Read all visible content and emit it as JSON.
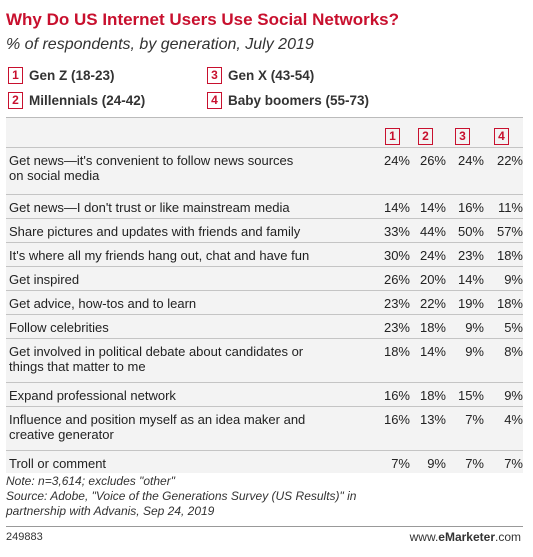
{
  "title": "Why Do US Internet Users Use Social Networks?",
  "subtitle": "% of respondents, by generation, July 2019",
  "legend": [
    {
      "num": "1",
      "label": "Gen Z (18-23)"
    },
    {
      "num": "2",
      "label": "Millennials (24-42)"
    },
    {
      "num": "3",
      "label": "Gen X (43-54)"
    },
    {
      "num": "4",
      "label": "Baby boomers (55-73)"
    }
  ],
  "column_numbers": [
    "1",
    "2",
    "3",
    "4"
  ],
  "chart_data": {
    "type": "table",
    "title": "Why Do US Internet Users Use Social Networks?",
    "subtitle": "% of respondents, by generation, July 2019",
    "series": [
      {
        "name": "Gen Z (18-23)",
        "values": [
          24,
          14,
          33,
          30,
          26,
          23,
          23,
          18,
          16,
          16,
          7
        ]
      },
      {
        "name": "Millennials (24-42)",
        "values": [
          26,
          14,
          44,
          24,
          20,
          22,
          18,
          14,
          18,
          13,
          9
        ]
      },
      {
        "name": "Gen X (43-54)",
        "values": [
          24,
          16,
          50,
          23,
          14,
          19,
          9,
          9,
          15,
          7,
          7
        ]
      },
      {
        "name": "Baby boomers (55-73)",
        "values": [
          22,
          11,
          57,
          18,
          9,
          18,
          5,
          8,
          9,
          4,
          7
        ]
      }
    ],
    "categories": [
      "Get news—it's convenient to follow news sources on social media",
      "Get news—I don't trust or like mainstream media",
      "Share pictures and updates with friends and family",
      "It's where all my friends hang out, chat and have fun",
      "Get inspired",
      "Get advice, how-tos and to learn",
      "Follow celebrities",
      "Get involved in political debate about candidates or things that matter to me",
      "Expand professional network",
      "Influence and position myself as an idea maker and creative generator",
      "Troll or comment"
    ]
  },
  "rows": [
    {
      "label": [
        "Get news—it's convenient to follow news sources",
        "on social media"
      ],
      "values": [
        "24%",
        "26%",
        "24%",
        "22%"
      ]
    },
    {
      "label": [
        "Get news—I don't trust or like mainstream media"
      ],
      "values": [
        "14%",
        "14%",
        "16%",
        "11%"
      ]
    },
    {
      "label": [
        "Share pictures and updates with friends and family"
      ],
      "values": [
        "33%",
        "44%",
        "50%",
        "57%"
      ]
    },
    {
      "label": [
        "It's where all my friends hang out, chat and have fun"
      ],
      "values": [
        "30%",
        "24%",
        "23%",
        "18%"
      ]
    },
    {
      "label": [
        "Get inspired"
      ],
      "values": [
        "26%",
        "20%",
        "14%",
        "9%"
      ]
    },
    {
      "label": [
        "Get advice, how-tos and to learn"
      ],
      "values": [
        "23%",
        "22%",
        "19%",
        "18%"
      ]
    },
    {
      "label": [
        "Follow celebrities"
      ],
      "values": [
        "23%",
        "18%",
        "9%",
        "5%"
      ]
    },
    {
      "label": [
        "Get involved in political debate about candidates or",
        "things that matter to me"
      ],
      "values": [
        "18%",
        "14%",
        "9%",
        "8%"
      ]
    },
    {
      "label": [
        "Expand professional network"
      ],
      "values": [
        "16%",
        "18%",
        "15%",
        "9%"
      ]
    },
    {
      "label": [
        "Influence and position myself as an idea maker and",
        "creative generator"
      ],
      "values": [
        "16%",
        "13%",
        "7%",
        "4%"
      ]
    },
    {
      "label": [
        "Troll or comment"
      ],
      "values": [
        "7%",
        "9%",
        "7%",
        "7%"
      ]
    }
  ],
  "note_lines": [
    "Note: n=3,614; excludes \"other\"",
    "Source: Adobe, \"Voice of the Generations Survey (US Results)\" in",
    "partnership with Advanis, Sep 24, 2019"
  ],
  "footer": {
    "id": "249883",
    "site_prefix": "www.",
    "site_brand": "eMarketer",
    "site_suffix": ".com"
  },
  "colors": {
    "accent": "#c8102e",
    "table_bg": "#f3f3f3"
  }
}
